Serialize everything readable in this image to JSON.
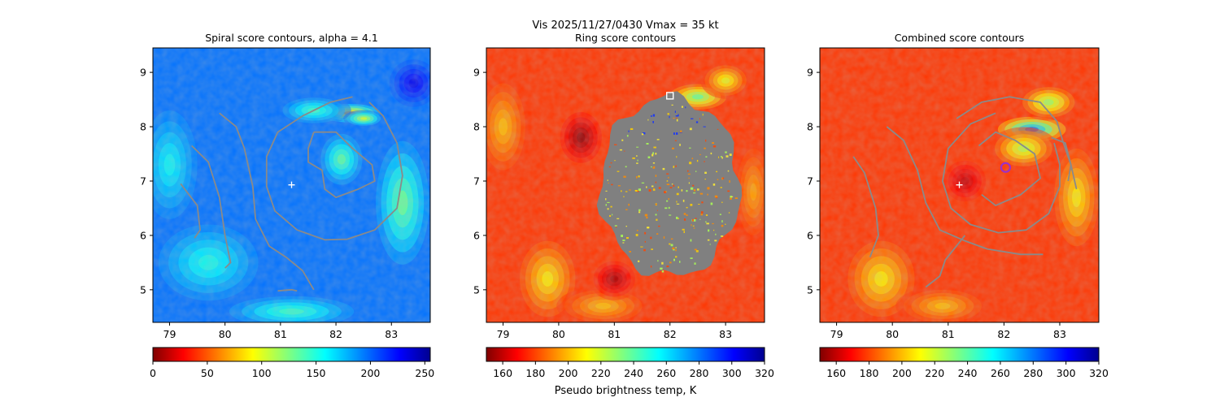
{
  "figure": {
    "suptitle": "Vis  2025/11/27/0430    Vmax = 35 kt",
    "colorbar_label": "Pseudo brightness temp, K"
  },
  "colors": {
    "contour": "#8a8a8a",
    "center_marker": "#ffffff",
    "max_marker": "#9b30c8"
  },
  "chart_data": [
    {
      "type": "heatmap",
      "title": "Spiral score contours, alpha =  4.1",
      "xlabel": "",
      "ylabel": "",
      "xlim": [
        78.7,
        83.7
      ],
      "ylim": [
        4.4,
        9.45
      ],
      "xticks": [
        "79",
        "80",
        "81",
        "82",
        "83"
      ],
      "yticks": [
        "5",
        "6",
        "7",
        "8",
        "9"
      ],
      "colormap": "jet_r",
      "colorbar": {
        "range": [
          0,
          255
        ],
        "ticks": [
          "0",
          "50",
          "100",
          "150",
          "200",
          "250"
        ]
      },
      "center": [
        81.2,
        6.93
      ],
      "base_value": 195,
      "contours": [
        {
          "name": "outer-arc-left",
          "points": [
            [
              79.2,
              6.95
            ],
            [
              79.5,
              6.55
            ],
            [
              79.55,
              6.1
            ],
            [
              79.45,
              5.95
            ]
          ]
        },
        {
          "name": "arc-mid-left",
          "points": [
            [
              79.4,
              7.65
            ],
            [
              79.7,
              7.35
            ],
            [
              79.9,
              6.7
            ],
            [
              80.0,
              6.0
            ],
            [
              80.1,
              5.5
            ],
            [
              80.0,
              5.4
            ]
          ]
        },
        {
          "name": "arc-long",
          "points": [
            [
              79.9,
              8.25
            ],
            [
              80.2,
              8.0
            ],
            [
              80.35,
              7.6
            ],
            [
              80.5,
              6.9
            ],
            [
              80.55,
              6.3
            ],
            [
              80.8,
              5.8
            ],
            [
              81.1,
              5.6
            ],
            [
              81.4,
              5.35
            ],
            [
              81.6,
              5.0
            ]
          ]
        },
        {
          "name": "band-outer",
          "points": [
            [
              82.3,
              8.55
            ],
            [
              81.9,
              8.45
            ],
            [
              81.4,
              8.2
            ],
            [
              80.95,
              7.9
            ],
            [
              80.75,
              7.45
            ],
            [
              80.75,
              6.9
            ],
            [
              80.9,
              6.45
            ],
            [
              81.3,
              6.1
            ],
            [
              81.8,
              5.92
            ],
            [
              82.2,
              5.93
            ],
            [
              82.7,
              6.1
            ],
            [
              83.1,
              6.5
            ],
            [
              83.2,
              7.1
            ],
            [
              83.1,
              7.7
            ],
            [
              82.85,
              8.2
            ],
            [
              82.6,
              8.45
            ]
          ]
        },
        {
          "name": "band-inner",
          "points": [
            [
              81.6,
              7.9
            ],
            [
              82.0,
              7.9
            ],
            [
              82.3,
              7.6
            ],
            [
              82.65,
              7.3
            ],
            [
              82.7,
              7.0
            ],
            [
              82.4,
              6.85
            ],
            [
              82.0,
              6.7
            ],
            [
              81.8,
              6.85
            ],
            [
              81.75,
              7.2
            ],
            [
              81.5,
              7.35
            ],
            [
              81.5,
              7.6
            ],
            [
              81.6,
              7.9
            ]
          ]
        },
        {
          "name": "short-bottom",
          "points": [
            [
              80.95,
              4.98
            ],
            [
              81.2,
              5.0
            ],
            [
              81.3,
              4.98
            ]
          ]
        }
      ],
      "hot_spots": [
        {
          "center": [
            82.25,
            8.25
          ],
          "radius": [
            0.55,
            0.17
          ],
          "value": 60,
          "spread": 1.6
        },
        {
          "center": [
            82.5,
            8.15
          ],
          "radius": [
            0.35,
            0.15
          ],
          "value": 95,
          "spread": 1.4
        },
        {
          "center": [
            81.6,
            8.3
          ],
          "radius": [
            0.6,
            0.25
          ],
          "value": 140,
          "spread": 1.5
        },
        {
          "center": [
            82.1,
            7.4
          ],
          "radius": [
            0.4,
            0.5
          ],
          "value": 130,
          "spread": 1.5
        },
        {
          "center": [
            83.2,
            6.6
          ],
          "radius": [
            0.55,
            1.3
          ],
          "value": 125,
          "spread": 1.4
        },
        {
          "center": [
            79.7,
            5.5
          ],
          "radius": [
            0.9,
            0.7
          ],
          "value": 150,
          "spread": 1.6
        },
        {
          "center": [
            79.0,
            7.3
          ],
          "radius": [
            0.5,
            1.0
          ],
          "value": 155,
          "spread": 1.6
        },
        {
          "center": [
            81.2,
            4.6
          ],
          "radius": [
            1.2,
            0.3
          ],
          "value": 140,
          "spread": 1.5
        },
        {
          "center": [
            83.4,
            8.8
          ],
          "radius": [
            0.5,
            0.5
          ],
          "value": 230,
          "spread": 1.4
        }
      ]
    },
    {
      "type": "heatmap",
      "title": "Ring score contours",
      "xlabel": "",
      "ylabel": "",
      "xlim": [
        78.7,
        83.7
      ],
      "ylim": [
        4.4,
        9.45
      ],
      "xticks": [
        "79",
        "80",
        "81",
        "82",
        "83"
      ],
      "yticks": [
        "5",
        "6",
        "7",
        "8",
        "9"
      ],
      "colormap": "jet_r",
      "colorbar": {
        "range": [
          150,
          320
        ],
        "ticks": [
          "160",
          "180",
          "200",
          "220",
          "240",
          "260",
          "280",
          "300",
          "320"
        ]
      },
      "base_value": 180,
      "ring_region": {
        "center": [
          82.0,
          6.9
        ],
        "radius": [
          1.25,
          1.65
        ],
        "color": "#808080"
      },
      "max_marker": [
        82.0,
        8.57
      ],
      "hot_spots": [
        {
          "center": [
            82.5,
            8.55
          ],
          "radius": [
            0.55,
            0.25
          ],
          "value": 245,
          "spread": 1.5
        },
        {
          "center": [
            83.0,
            8.85
          ],
          "radius": [
            0.4,
            0.3
          ],
          "value": 220,
          "spread": 1.5
        },
        {
          "center": [
            79.8,
            5.2
          ],
          "radius": [
            0.5,
            0.7
          ],
          "value": 215,
          "spread": 1.6
        },
        {
          "center": [
            79.0,
            8.0
          ],
          "radius": [
            0.4,
            0.8
          ],
          "value": 205,
          "spread": 1.6
        },
        {
          "center": [
            80.8,
            4.7
          ],
          "radius": [
            0.7,
            0.3
          ],
          "value": 205,
          "spread": 1.6
        },
        {
          "center": [
            83.5,
            6.8
          ],
          "radius": [
            0.3,
            0.8
          ],
          "value": 200,
          "spread": 1.6
        },
        {
          "center": [
            80.4,
            7.8
          ],
          "radius": [
            0.4,
            0.5
          ],
          "value": 150,
          "spread": 1.5
        },
        {
          "center": [
            81.0,
            5.2
          ],
          "radius": [
            0.4,
            0.35
          ],
          "value": 155,
          "spread": 1.5
        }
      ]
    },
    {
      "type": "heatmap",
      "title": "Combined score contours",
      "xlabel": "",
      "ylabel": "",
      "xlim": [
        78.7,
        83.7
      ],
      "ylim": [
        4.4,
        9.45
      ],
      "xticks": [
        "79",
        "80",
        "81",
        "82",
        "83"
      ],
      "yticks": [
        "5",
        "6",
        "7",
        "8",
        "9"
      ],
      "colormap": "jet_r",
      "colorbar": {
        "range": [
          150,
          320
        ],
        "ticks": [
          "160",
          "180",
          "200",
          "220",
          "240",
          "260",
          "280",
          "300",
          "320"
        ]
      },
      "center": [
        81.2,
        6.93
      ],
      "max_marker": [
        82.03,
        7.25
      ],
      "base_value": 180,
      "contours": [
        {
          "name": "outer-arc-left",
          "points": [
            [
              79.3,
              7.45
            ],
            [
              79.5,
              7.15
            ],
            [
              79.7,
              6.5
            ],
            [
              79.75,
              6.0
            ],
            [
              79.6,
              5.6
            ]
          ]
        },
        {
          "name": "arc-long",
          "points": [
            [
              79.9,
              8.0
            ],
            [
              80.2,
              7.75
            ],
            [
              80.45,
              7.2
            ],
            [
              80.6,
              6.6
            ],
            [
              80.85,
              6.1
            ],
            [
              81.3,
              5.9
            ],
            [
              81.7,
              5.75
            ],
            [
              82.3,
              5.65
            ],
            [
              82.7,
              5.65
            ]
          ]
        },
        {
          "name": "band-outer",
          "points": [
            [
              81.85,
              8.25
            ],
            [
              81.4,
              8.05
            ],
            [
              81.0,
              7.6
            ],
            [
              80.9,
              7.0
            ],
            [
              81.05,
              6.5
            ],
            [
              81.4,
              6.2
            ],
            [
              81.9,
              6.05
            ],
            [
              82.4,
              6.1
            ],
            [
              82.8,
              6.4
            ],
            [
              83.0,
              6.9
            ],
            [
              83.0,
              7.3
            ],
            [
              82.9,
              7.7
            ]
          ]
        },
        {
          "name": "band-second",
          "points": [
            [
              81.15,
              8.15
            ],
            [
              81.6,
              8.45
            ],
            [
              82.1,
              8.55
            ],
            [
              82.65,
              8.45
            ],
            [
              82.95,
              8.1
            ],
            [
              83.05,
              7.75
            ],
            [
              83.2,
              7.3
            ],
            [
              83.15,
              7.0
            ]
          ]
        },
        {
          "name": "band-inner",
          "points": [
            [
              81.55,
              7.65
            ],
            [
              81.85,
              7.9
            ],
            [
              82.2,
              7.75
            ],
            [
              82.55,
              7.5
            ],
            [
              82.65,
              7.05
            ],
            [
              82.3,
              6.75
            ],
            [
              81.85,
              6.55
            ],
            [
              81.6,
              6.75
            ]
          ]
        },
        {
          "name": "lower-arc",
          "points": [
            [
              80.6,
              5.05
            ],
            [
              80.85,
              5.25
            ],
            [
              80.95,
              5.55
            ],
            [
              81.3,
              6.0
            ]
          ]
        },
        {
          "name": "right-arc",
          "points": [
            [
              82.85,
              7.8
            ],
            [
              83.1,
              7.7
            ],
            [
              83.2,
              7.3
            ],
            [
              83.3,
              6.85
            ]
          ]
        }
      ],
      "hot_spots": [
        {
          "center": [
            82.5,
            7.95
          ],
          "radius": [
            0.65,
            0.25
          ],
          "value": 290,
          "spread": 1.5
        },
        {
          "center": [
            82.8,
            8.45
          ],
          "radius": [
            0.5,
            0.3
          ],
          "value": 235,
          "spread": 1.5
        },
        {
          "center": [
            82.35,
            7.6
          ],
          "radius": [
            0.55,
            0.35
          ],
          "value": 230,
          "spread": 1.5
        },
        {
          "center": [
            79.8,
            5.2
          ],
          "radius": [
            0.6,
            0.7
          ],
          "value": 215,
          "spread": 1.6
        },
        {
          "center": [
            83.3,
            6.7
          ],
          "radius": [
            0.4,
            0.9
          ],
          "value": 215,
          "spread": 1.6
        },
        {
          "center": [
            80.9,
            4.7
          ],
          "radius": [
            0.7,
            0.3
          ],
          "value": 205,
          "spread": 1.6
        },
        {
          "center": [
            81.3,
            7.0
          ],
          "radius": [
            0.4,
            0.4
          ],
          "value": 160,
          "spread": 1.5
        }
      ]
    }
  ]
}
